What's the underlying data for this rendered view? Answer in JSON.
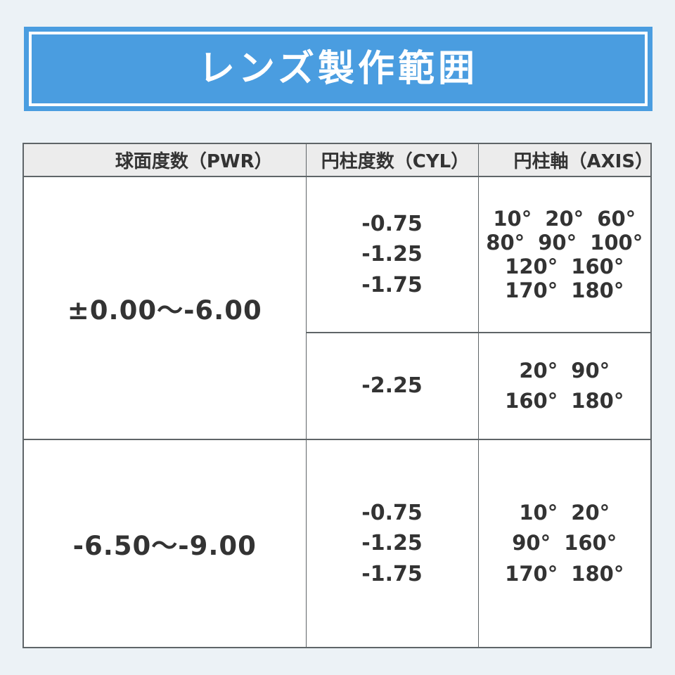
{
  "page": {
    "background": "#ecf2f6"
  },
  "banner": {
    "title": "レンズ製作範囲",
    "bg_color": "#4a9de0",
    "border_color": "#ffffff",
    "text_color": "#ffffff"
  },
  "table": {
    "border_color": "#5f6568",
    "header_bg": "#ececec",
    "text_color": "#333333",
    "headers": [
      "球面度数（PWR）",
      "円柱度数（CYL）",
      "円柱軸（AXIS）"
    ],
    "rows": [
      {
        "pwr": "±0.00〜-6.00",
        "subrows": [
          {
            "cyl": [
              "-0.75",
              "-1.25",
              "-1.75"
            ],
            "axis": [
              "10° 20° 60°",
              "80° 90° 100°",
              "120° 160°",
              "170° 180°"
            ]
          },
          {
            "cyl": [
              "-2.25"
            ],
            "axis": [
              "20° 90°",
              "160° 180°"
            ]
          }
        ]
      },
      {
        "pwr": "-6.50〜-9.00",
        "subrows": [
          {
            "cyl": [
              "-0.75",
              "-1.25",
              "-1.75"
            ],
            "axis": [
              "10° 20°",
              "90° 160°",
              "170° 180°"
            ]
          }
        ]
      }
    ]
  },
  "chart_data": {
    "type": "table",
    "title": "レンズ製作範囲",
    "columns": [
      "球面度数（PWR）",
      "円柱度数（CYL）",
      "円柱軸（AXIS）"
    ],
    "rows": [
      [
        "±0.00〜-6.00",
        "-0.75 / -1.25 / -1.75",
        "10° 20° 60° 80° 90° 100° 120° 160° 170° 180°"
      ],
      [
        "±0.00〜-6.00",
        "-2.25",
        "20° 90° 160° 180°"
      ],
      [
        "-6.50〜-9.00",
        "-0.75 / -1.25 / -1.75",
        "10° 20° 90° 160° 170° 180°"
      ]
    ]
  }
}
